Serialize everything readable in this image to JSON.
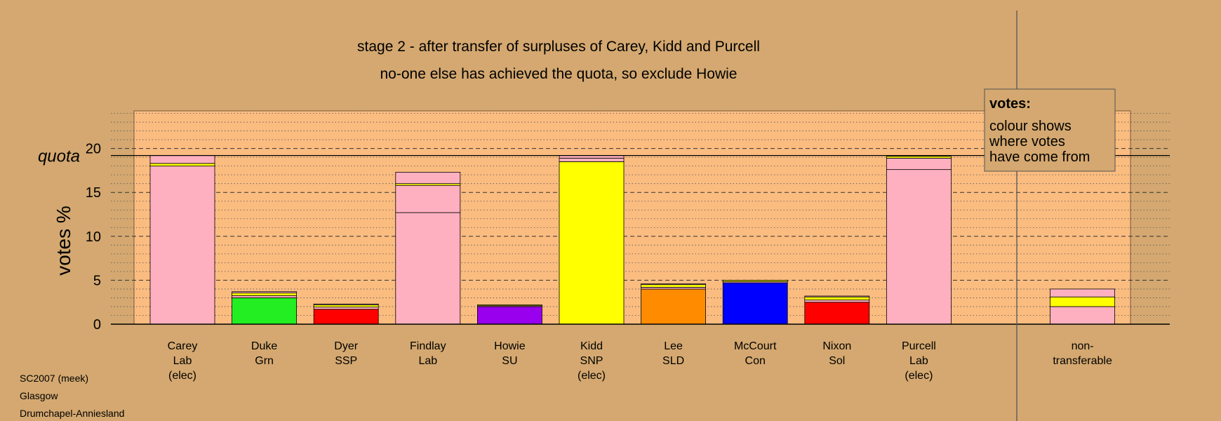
{
  "chart_data": {
    "type": "bar",
    "stacked": true,
    "title": "stage 2 - after transfer of surpluses of Carey, Kidd and Purcell",
    "subtitle": "no-one else has achieved the quota, so exclude Howie",
    "ylabel": "votes %",
    "ylim": [
      0,
      25
    ],
    "yticks": [
      "0",
      "5",
      "10",
      "15",
      "20"
    ],
    "quota": {
      "label": "quota",
      "value": 19.2
    },
    "legend": {
      "title": "votes:",
      "lines": [
        "colour shows",
        "where votes",
        "have come from"
      ]
    },
    "candidates": [
      {
        "lines": [
          "Carey",
          "Lab",
          "(elec)"
        ],
        "segments": [
          {
            "value": 18.0,
            "color": "#ffb0c0"
          },
          {
            "value": 0.3,
            "color": "#ffff00"
          },
          {
            "value": 0.9,
            "color": "#ffb0c0"
          }
        ]
      },
      {
        "lines": [
          "Duke",
          "Grn"
        ],
        "segments": [
          {
            "value": 3.0,
            "color": "#22ee22"
          },
          {
            "value": 0.25,
            "color": "#ffb0c0"
          },
          {
            "value": 0.3,
            "color": "#ffff00"
          },
          {
            "value": 0.15,
            "color": "#ffb0c0"
          }
        ]
      },
      {
        "lines": [
          "Dyer",
          "SSP"
        ],
        "segments": [
          {
            "value": 1.7,
            "color": "#ff0000"
          },
          {
            "value": 0.25,
            "color": "#ffb0c0"
          },
          {
            "value": 0.25,
            "color": "#ffff00"
          },
          {
            "value": 0.1,
            "color": "#ffb0c0"
          }
        ]
      },
      {
        "lines": [
          "Findlay",
          "Lab"
        ],
        "segments": [
          {
            "value": 12.7,
            "color": "#ffb0c0"
          },
          {
            "value": 3.1,
            "color": "#ffb0c0"
          },
          {
            "value": 0.2,
            "color": "#ffff00"
          },
          {
            "value": 1.3,
            "color": "#ffb0c0"
          }
        ]
      },
      {
        "lines": [
          "Howie",
          "SU"
        ],
        "segments": [
          {
            "value": 2.0,
            "color": "#9900ee"
          },
          {
            "value": 0.1,
            "color": "#ffb0c0"
          },
          {
            "value": 0.1,
            "color": "#ffff00"
          }
        ]
      },
      {
        "lines": [
          "Kidd",
          "SNP",
          "(elec)"
        ],
        "segments": [
          {
            "value": 18.5,
            "color": "#ffff00"
          },
          {
            "value": 0.4,
            "color": "#ffb0c0"
          },
          {
            "value": 0.3,
            "color": "#ffb0c0"
          }
        ]
      },
      {
        "lines": [
          "Lee",
          "SLD"
        ],
        "segments": [
          {
            "value": 4.0,
            "color": "#ff8c00"
          },
          {
            "value": 0.2,
            "color": "#ffb0c0"
          },
          {
            "value": 0.3,
            "color": "#ffff00"
          },
          {
            "value": 0.1,
            "color": "#ffb0c0"
          }
        ]
      },
      {
        "lines": [
          "McCourt",
          "Con"
        ],
        "segments": [
          {
            "value": 4.7,
            "color": "#0000ff"
          },
          {
            "value": 0.15,
            "color": "#ffb0c0"
          },
          {
            "value": 0.15,
            "color": "#ffff00"
          }
        ]
      },
      {
        "lines": [
          "Nixon",
          "Sol"
        ],
        "segments": [
          {
            "value": 2.5,
            "color": "#ff0000"
          },
          {
            "value": 0.25,
            "color": "#ffb0c0"
          },
          {
            "value": 0.35,
            "color": "#ffff00"
          },
          {
            "value": 0.1,
            "color": "#ffb0c0"
          }
        ]
      },
      {
        "lines": [
          "Purcell",
          "Lab",
          "(elec)"
        ],
        "segments": [
          {
            "value": 17.6,
            "color": "#ffb0c0"
          },
          {
            "value": 1.3,
            "color": "#ffb0c0"
          },
          {
            "value": 0.2,
            "color": "#ffff00"
          }
        ]
      },
      {
        "lines": [
          "non-",
          "transferable"
        ],
        "segments": [
          {
            "value": 2.0,
            "color": "#ffb0c0"
          },
          {
            "value": 1.1,
            "color": "#ffff00"
          },
          {
            "value": 0.9,
            "color": "#ffb0c0"
          }
        ]
      }
    ]
  },
  "footer": {
    "line1": "SC2007 (meek)",
    "line2": "Glasgow",
    "line3": "Drumchapel-Anniesland"
  }
}
